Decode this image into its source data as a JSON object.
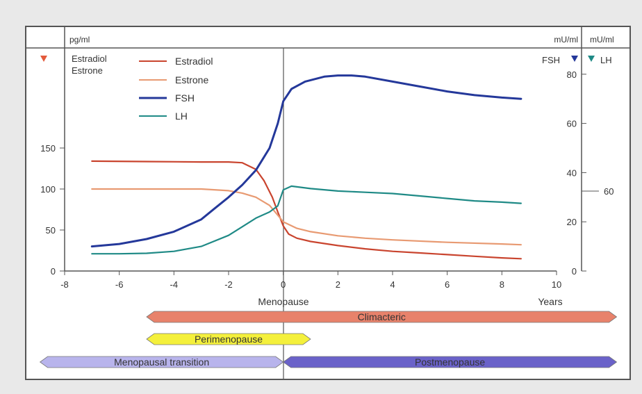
{
  "chart_data": {
    "type": "line",
    "header_units": {
      "left": "pg/ml",
      "right1": "mU/ml",
      "right2": "mU/ml"
    },
    "left_axis_title": [
      "Estradiol",
      "Estrone"
    ],
    "left_marker_color": "#e35a3c",
    "right_labels": {
      "fsh": "FSH",
      "lh": "LH"
    },
    "xlabel": "Menopause",
    "x_unit_label": "Years",
    "xlim": [
      -8,
      10
    ],
    "x_ticks": [
      -8,
      -6,
      -4,
      -2,
      0,
      2,
      4,
      6,
      8,
      10
    ],
    "ylim_left": [
      0,
      180
    ],
    "y_ticks_left": [
      0,
      50,
      100,
      150
    ],
    "ylim_right": [
      0,
      90
    ],
    "y_ticks_right": [
      0,
      20,
      40,
      60,
      80
    ],
    "lh_tick_label": "60",
    "legend_position": "top-left",
    "grid": false,
    "series": [
      {
        "name": "Estradiol",
        "axis": "left",
        "color": "#c9442e",
        "x": [
          -7,
          -5,
          -3,
          -2,
          -1.5,
          -1,
          -0.7,
          -0.4,
          -0.2,
          0,
          0.2,
          0.5,
          1,
          2,
          3,
          4,
          5,
          6,
          7,
          8,
          8.7
        ],
        "y": [
          134,
          133.5,
          133,
          133,
          132,
          124,
          110,
          90,
          72,
          55,
          45,
          40,
          36,
          31,
          27,
          24,
          22,
          20,
          18,
          16,
          15
        ]
      },
      {
        "name": "Estrone",
        "axis": "left",
        "color": "#e89a72",
        "x": [
          -7,
          -5,
          -3,
          -2,
          -1.5,
          -1,
          -0.5,
          0,
          0.5,
          1,
          2,
          3,
          4,
          6,
          8,
          8.7
        ],
        "y": [
          100,
          100,
          100,
          98,
          95,
          90,
          80,
          60,
          52,
          48,
          43,
          40,
          38,
          35,
          33,
          32
        ]
      },
      {
        "name": "FSH",
        "axis": "right",
        "color": "#24389a",
        "x": [
          -7,
          -6,
          -5,
          -4,
          -3,
          -2.5,
          -2,
          -1.5,
          -1,
          -0.5,
          -0.2,
          0,
          0.3,
          0.8,
          1.5,
          2,
          2.5,
          3,
          4,
          5,
          6,
          7,
          8,
          8.7
        ],
        "y": [
          10,
          11,
          13,
          16,
          21,
          25.5,
          30,
          35,
          41,
          50,
          60,
          69,
          74,
          77,
          79,
          79.5,
          79.5,
          79,
          77,
          75,
          73,
          71.5,
          70.5,
          70
        ]
      },
      {
        "name": "LH",
        "axis": "right",
        "color": "#1f8a86",
        "x": [
          -7,
          -6,
          -5,
          -4,
          -3,
          -2,
          -1.5,
          -1,
          -0.5,
          -0.2,
          0,
          0.3,
          1,
          2,
          3,
          4,
          5,
          6,
          7,
          8,
          8.7
        ],
        "y": [
          7,
          7,
          7.2,
          8,
          10,
          14.5,
          18,
          21.5,
          24,
          26.5,
          33,
          34.5,
          33.5,
          32.5,
          32,
          31.5,
          30.5,
          29.5,
          28.5,
          28,
          27.5
        ]
      }
    ],
    "phases": [
      {
        "label": "Climacteric",
        "x_start": -5,
        "x_end": 12.2,
        "row": 1,
        "color": "#e8826b"
      },
      {
        "label": "Perimenopause",
        "x_start": -5,
        "x_end": 1,
        "row": 2,
        "color": "#f4f03c"
      },
      {
        "label": "Menopausal transition",
        "x_start": -8.9,
        "x_end": 0,
        "row": 3,
        "color": "#b8b4ec"
      },
      {
        "label": "Postmenopause",
        "x_start": 0,
        "x_end": 12.2,
        "row": 3,
        "color": "#6a62c9"
      }
    ]
  }
}
